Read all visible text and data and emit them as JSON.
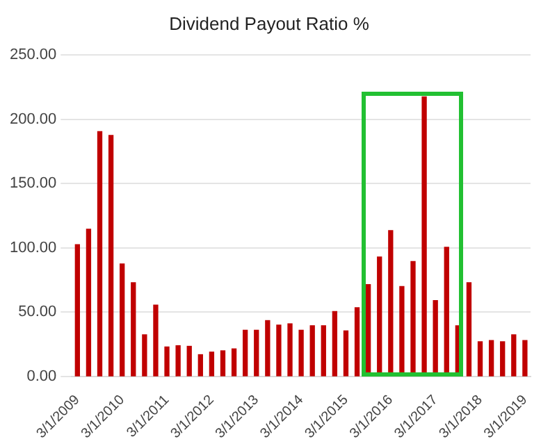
{
  "chart_data": {
    "type": "bar",
    "title": "Dividend Payout Ratio %",
    "categories": [
      "3/1/2009",
      null,
      null,
      null,
      "3/1/2010",
      null,
      null,
      null,
      "3/1/2011",
      null,
      null,
      null,
      "3/1/2012",
      null,
      null,
      null,
      "3/1/2013",
      null,
      null,
      null,
      "3/1/2014",
      null,
      null,
      null,
      "3/1/2015",
      null,
      null,
      null,
      "3/1/2016",
      null,
      null,
      null,
      "3/1/2017",
      null,
      null,
      null,
      "3/1/2018",
      null,
      null,
      null,
      "3/1/2019"
    ],
    "values": [
      102.5,
      114.5,
      190.5,
      187.5,
      87.5,
      73,
      32.5,
      55.5,
      23,
      24,
      23.5,
      17,
      19,
      20,
      21.5,
      36,
      36,
      43.5,
      40,
      41,
      36,
      39.5,
      39.5,
      50.5,
      35.5,
      53.5,
      71.5,
      93,
      113.5,
      70,
      89.5,
      217.5,
      59,
      100.5,
      39.5,
      73,
      27,
      28,
      27,
      32.5,
      28
    ],
    "color": "#c00000",
    "ylim": [
      0,
      250
    ],
    "yticks": [
      {
        "value": 0,
        "label": "0.00"
      },
      {
        "value": 50,
        "label": "50.00"
      },
      {
        "value": 100,
        "label": "100.00"
      },
      {
        "value": 150,
        "label": "150.00"
      },
      {
        "value": 200,
        "label": "200.00"
      },
      {
        "value": 250,
        "label": "250.00"
      }
    ],
    "grid": "y"
  }
}
